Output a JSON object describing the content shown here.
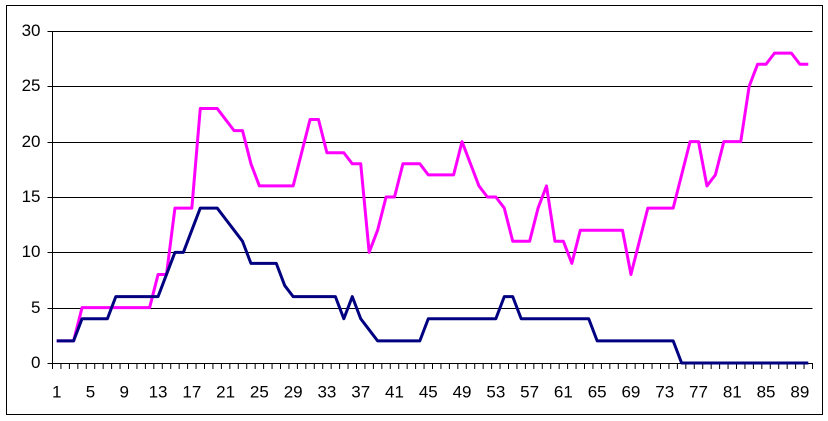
{
  "chart_data": {
    "type": "line",
    "categories": [
      1,
      null,
      null,
      null,
      5,
      null,
      null,
      null,
      9,
      null,
      null,
      null,
      13,
      null,
      null,
      null,
      17,
      null,
      null,
      null,
      21,
      null,
      null,
      null,
      25,
      null,
      null,
      null,
      29,
      null,
      null,
      null,
      33,
      null,
      null,
      null,
      37,
      null,
      null,
      null,
      41,
      null,
      null,
      null,
      45,
      null,
      null,
      null,
      49,
      null,
      null,
      null,
      53,
      null,
      null,
      null,
      57,
      null,
      null,
      null,
      61,
      null,
      null,
      null,
      65,
      null,
      null,
      null,
      69,
      null,
      null,
      null,
      73,
      null,
      null,
      null,
      77,
      null,
      null,
      null,
      81,
      null,
      null,
      null,
      85,
      null,
      null,
      null,
      89,
      null
    ],
    "series": [
      {
        "color": "#ff00ff",
        "values": [
          2,
          2,
          2,
          5,
          5,
          5,
          5,
          5,
          5,
          5,
          5,
          5,
          8,
          8,
          14,
          14,
          14,
          23,
          23,
          23,
          22,
          21,
          21,
          18,
          16,
          16,
          16,
          16,
          16,
          19,
          22,
          22,
          19,
          19,
          19,
          18,
          18,
          10,
          12,
          15,
          15,
          18,
          18,
          18,
          17,
          17,
          17,
          17,
          20,
          18,
          16,
          15,
          15,
          14,
          11,
          11,
          11,
          14,
          16,
          11,
          11,
          9,
          12,
          12,
          12,
          12,
          12,
          12,
          8,
          11,
          14,
          14,
          14,
          14,
          17,
          20,
          20,
          16,
          17,
          20,
          20,
          20,
          25,
          27,
          27,
          28,
          28,
          28,
          27,
          27
        ]
      },
      {
        "color": "#000080",
        "values": [
          2,
          2,
          2,
          4,
          4,
          4,
          4,
          6,
          6,
          6,
          6,
          6,
          6,
          8,
          10,
          10,
          12,
          14,
          14,
          14,
          13,
          12,
          11,
          9,
          9,
          9,
          9,
          7,
          6,
          6,
          6,
          6,
          6,
          6,
          4,
          6,
          4,
          3,
          2,
          2,
          2,
          2,
          2,
          2,
          4,
          4,
          4,
          4,
          4,
          4,
          4,
          4,
          4,
          6,
          6,
          4,
          4,
          4,
          4,
          4,
          4,
          4,
          4,
          4,
          2,
          2,
          2,
          2,
          2,
          2,
          2,
          2,
          2,
          2,
          0,
          0,
          0,
          0,
          0,
          0,
          0,
          0,
          0,
          0,
          0,
          0,
          0,
          0,
          0,
          0
        ]
      }
    ],
    "ylim": [
      0,
      30
    ],
    "yticks": [
      0,
      5,
      10,
      15,
      20,
      25,
      30
    ],
    "grid": true
  }
}
